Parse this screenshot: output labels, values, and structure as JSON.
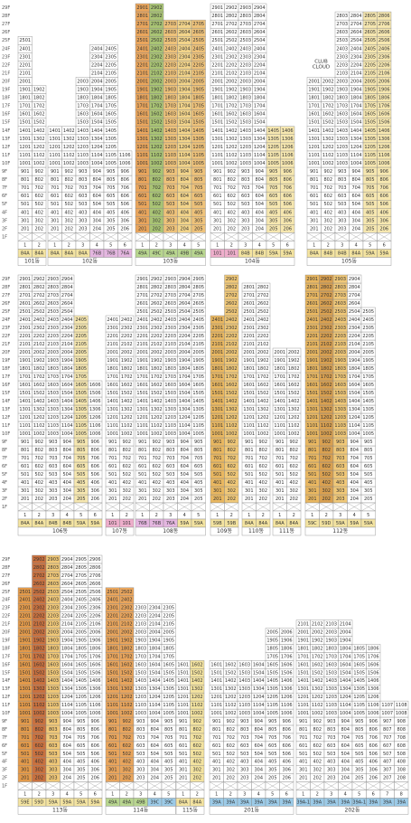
{
  "type_colors": {
    "84A": "#f3e3a0",
    "84B": "#f3e3a0",
    "76A": "#e4b6e0",
    "76B": "#e4b6e0",
    "49A": "#b8d68f",
    "49B": "#b8d68f",
    "49C": "#b8d68f",
    "101": "#eeaecb",
    "59A": "#f3e3a0",
    "59B": "#f3e3a0",
    "59C": "#f3e3a0",
    "59D": "#f3e3a0",
    "59E": "#f3e3a0",
    "39A": "#9ccbe8",
    "39A-1": "#9ccbe8",
    "39C": "#9ccbe8"
  },
  "panels": [
    {
      "floor_labels": [
        "29F",
        "28F",
        "27F",
        "26F",
        "25F",
        "24F",
        "23F",
        "22F",
        "21F",
        "20F",
        "19F",
        "18F",
        "17F",
        "16F",
        "15F",
        "14F",
        "13F",
        "12F",
        "11F",
        "10F",
        "9F",
        "8F",
        "7F",
        "6F",
        "5F",
        "4F",
        "3F",
        "2F",
        "1F"
      ],
      "annotations": [
        "CLUB\nCLOUD"
      ],
      "buildings": [
        {
          "name": "101동",
          "columns": [
            {
              "n": "1",
              "line": "01",
              "type": "84A",
              "top": 25
            },
            {
              "n": "2",
              "line": "02",
              "type": "84A",
              "top": 19
            }
          ]
        },
        {
          "name": "102동",
          "columns": [
            {
              "n": "1",
              "line": "01",
              "type": "84A",
              "top": 14
            },
            {
              "n": "2",
              "line": "02",
              "type": "84A",
              "top": 14
            },
            {
              "n": "3",
              "line": "03",
              "type": "84A",
              "top": 20
            },
            {
              "n": "4",
              "line": "04",
              "type": "76B",
              "top": 24
            },
            {
              "n": "5",
              "line": "05",
              "type": "76B",
              "top": 24
            },
            {
              "n": "6",
              "line": "06",
              "type": "76A",
              "top": 11
            }
          ]
        },
        {
          "name": "103동",
          "columns": [
            {
              "n": "1",
              "line": "01",
              "type": "49A",
              "top": 29,
              "color": "#e9a55c"
            },
            {
              "n": "2",
              "line": "02",
              "type": "49C",
              "top": 29,
              "color": "#a9c474"
            },
            {
              "n": "3",
              "line": "03",
              "type": "49A",
              "top": 27,
              "color": "#eec27a"
            },
            {
              "n": "4",
              "line": "04",
              "type": "49B",
              "top": 27,
              "color": "#f2d48a"
            },
            {
              "n": "5",
              "line": "05",
              "type": "49A",
              "top": 27,
              "color": "#eec27a"
            }
          ]
        },
        {
          "name": "104동",
          "columns": [
            {
              "n": "1",
              "line": "01",
              "type": "101",
              "top": 29
            },
            {
              "n": "2",
              "line": "02",
              "type": "101",
              "top": 29
            },
            {
              "n": "3",
              "line": "03",
              "type": "84B",
              "top": 29
            },
            {
              "n": "4",
              "line": "04",
              "type": "84B",
              "top": 29
            },
            {
              "n": "5",
              "line": "05",
              "type": "59A",
              "top": 14,
              "color": "#f6e7b0"
            },
            {
              "n": "6",
              "line": "06",
              "type": "59A",
              "top": 14,
              "color": "#f6e7b0"
            }
          ]
        },
        {
          "name": "105동",
          "columns": [
            {
              "n": "1",
              "line": "01",
              "type": "84A",
              "top": 20
            },
            {
              "n": "2",
              "line": "02",
              "type": "84B",
              "top": 20
            },
            {
              "n": "3",
              "line": "03",
              "type": "84B",
              "top": 28
            },
            {
              "n": "4",
              "line": "04",
              "type": "84A",
              "top": 28
            },
            {
              "n": "5",
              "line": "05",
              "type": "59A",
              "top": 28,
              "color": "#f6e7b0"
            },
            {
              "n": "6",
              "line": "06",
              "type": "59A",
              "top": 28,
              "color": "#f6e7b0"
            }
          ]
        }
      ]
    },
    {
      "floor_labels": [
        "29F",
        "28F",
        "27F",
        "26F",
        "25F",
        "24F",
        "23F",
        "22F",
        "21F",
        "20F",
        "19F",
        "18F",
        "17F",
        "16F",
        "15F",
        "14F",
        "13F",
        "12F",
        "11F",
        "10F",
        "9F",
        "8F",
        "7F",
        "6F",
        "5F",
        "4F",
        "3F",
        "2F",
        "1F"
      ],
      "annotations": [],
      "buildings": [
        {
          "name": "106동",
          "columns": [
            {
              "n": "1",
              "line": "01",
              "type": "84A",
              "top": 29
            },
            {
              "n": "2",
              "line": "02",
              "type": "84A",
              "top": 29
            },
            {
              "n": "3",
              "line": "03",
              "type": "84B",
              "top": 29
            },
            {
              "n": "4",
              "line": "04",
              "type": "84B",
              "top": 29
            },
            {
              "n": "5",
              "line": "05",
              "type": "59A",
              "top": 24,
              "color": "#f6e7b0"
            },
            {
              "n": "6",
              "line": "06",
              "type": "59A",
              "top": 16
            }
          ]
        },
        {
          "name": "107동",
          "columns": [
            {
              "n": "1",
              "line": "01",
              "type": "101",
              "top": 24
            },
            {
              "n": "2",
              "line": "02",
              "type": "101",
              "top": 24
            }
          ]
        },
        {
          "name": "108동",
          "columns": [
            {
              "n": "1",
              "line": "01",
              "type": "76B",
              "top": 29
            },
            {
              "n": "2",
              "line": "02",
              "type": "76B",
              "top": 29
            },
            {
              "n": "3",
              "line": "03",
              "type": "76A",
              "top": 29
            },
            {
              "n": "4",
              "line": "04",
              "type": "59A",
              "top": 29
            },
            {
              "n": "5",
              "line": "05",
              "type": "59A",
              "top": 29
            }
          ]
        },
        {
          "name": "109동",
          "columns": [
            {
              "n": "1",
              "line": "01",
              "type": "59B",
              "top": 24,
              "color": "#e9b760"
            },
            {
              "n": "2",
              "line": "02",
              "type": "59B",
              "top": 29,
              "color": "#f0c878"
            }
          ]
        },
        {
          "name": "110동",
          "columns": [
            {
              "n": "1",
              "line": "01",
              "type": "84A",
              "top": 28
            },
            {
              "n": "2",
              "line": "02",
              "type": "84A",
              "top": 28
            }
          ]
        },
        {
          "name": "111동",
          "columns": [
            {
              "n": "1",
              "line": "01",
              "type": "84A",
              "top": 20
            },
            {
              "n": "2",
              "line": "02",
              "type": "84A",
              "top": 20
            }
          ]
        },
        {
          "name": "112동",
          "columns": [
            {
              "n": "1",
              "line": "01",
              "type": "59C",
              "top": 29,
              "color": "#e9b760"
            },
            {
              "n": "2",
              "line": "02",
              "type": "59D",
              "top": 29,
              "color": "#d9a050"
            },
            {
              "n": "3",
              "line": "03",
              "type": "59A",
              "top": 29,
              "color": "#f0c878"
            },
            {
              "n": "4",
              "line": "04",
              "type": "59A",
              "top": 29
            },
            {
              "n": "5",
              "line": "05",
              "type": "59A",
              "top": 25
            }
          ]
        }
      ]
    },
    {
      "floor_labels": [
        "29F",
        "28F",
        "27F",
        "26F",
        "25F",
        "24F",
        "23F",
        "22F",
        "21F",
        "20F",
        "19F",
        "18F",
        "17F",
        "16F",
        "15F",
        "14F",
        "13F",
        "12F",
        "11F",
        "10F",
        "9F",
        "8F",
        "7F",
        "6F",
        "5F",
        "4F",
        "3F",
        "2F",
        "1F"
      ],
      "annotations": [],
      "buildings": [
        {
          "name": "113동",
          "columns": [
            {
              "n": "1",
              "line": "01",
              "type": "59E",
              "top": 25,
              "color": "#e39a4a"
            },
            {
              "n": "2",
              "line": "02",
              "type": "59D",
              "top": 29,
              "color": "#c9713f"
            },
            {
              "n": "3",
              "line": "03",
              "type": "59A",
              "top": 29,
              "color": "#f0c878"
            },
            {
              "n": "4",
              "line": "04",
              "type": "59A",
              "top": 29
            },
            {
              "n": "5",
              "line": "05",
              "type": "59A",
              "top": 29
            },
            {
              "n": "6",
              "line": "06",
              "type": "59A",
              "top": 29
            }
          ]
        },
        {
          "name": "114동",
          "columns": [
            {
              "n": "1",
              "line": "01",
              "type": "49A",
              "top": 25,
              "color": "#e9a55c"
            },
            {
              "n": "2",
              "line": "02",
              "type": "49A",
              "top": 25,
              "color": "#e9a55c"
            },
            {
              "n": "3",
              "line": "03",
              "type": "49B",
              "top": 23
            },
            {
              "n": "4",
              "line": "04",
              "type": "39C",
              "top": 23
            },
            {
              "n": "5",
              "line": "05",
              "type": "39C",
              "top": 23
            }
          ]
        },
        {
          "name": "115동",
          "columns": [
            {
              "n": "1",
              "line": "01",
              "type": "84A",
              "top": 16
            },
            {
              "n": "2",
              "line": "02",
              "type": "84A",
              "top": 16,
              "color": "#f3e3a0"
            }
          ]
        },
        {
          "name": "201동",
          "columns": [
            {
              "n": "1",
              "line": "01",
              "type": "39A",
              "top": 16
            },
            {
              "n": "2",
              "line": "02",
              "type": "39A",
              "top": 16
            },
            {
              "n": "3",
              "line": "03",
              "type": "39A",
              "top": 16
            },
            {
              "n": "4",
              "line": "04",
              "type": "39A",
              "top": 16
            },
            {
              "n": "5",
              "line": "05",
              "type": "39A",
              "top": 20
            },
            {
              "n": "6",
              "line": "06",
              "type": "39A",
              "top": 20
            }
          ]
        },
        {
          "name": "202동",
          "columns": [
            {
              "n": "1",
              "line": "01",
              "type": "39A-1",
              "top": 21
            },
            {
              "n": "2",
              "line": "02",
              "type": "39A",
              "top": 21
            },
            {
              "n": "3",
              "line": "03",
              "type": "39A",
              "top": 21
            },
            {
              "n": "4",
              "line": "04",
              "type": "39A",
              "top": 21
            },
            {
              "n": "5",
              "line": "05",
              "type": "39A-1",
              "top": 18
            },
            {
              "n": "6",
              "line": "06",
              "type": "39A",
              "top": 18
            },
            {
              "n": "7",
              "line": "07",
              "type": "39A",
              "top": 11
            },
            {
              "n": "8",
              "line": "08",
              "type": "39A",
              "top": 11
            }
          ]
        }
      ]
    }
  ]
}
